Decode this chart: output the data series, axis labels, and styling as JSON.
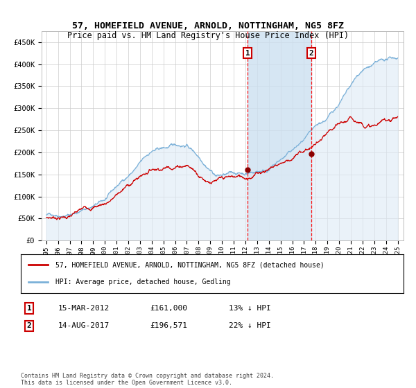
{
  "title": "57, HOMEFIELD AVENUE, ARNOLD, NOTTINGHAM, NG5 8FZ",
  "subtitle": "Price paid vs. HM Land Registry's House Price Index (HPI)",
  "background_color": "#ffffff",
  "plot_bg_color": "#ffffff",
  "grid_color": "#cccccc",
  "ytick_labels": [
    "£0",
    "£50K",
    "£100K",
    "£150K",
    "£200K",
    "£250K",
    "£300K",
    "£350K",
    "£400K",
    "£450K"
  ],
  "yticks": [
    0,
    50000,
    100000,
    150000,
    200000,
    250000,
    300000,
    350000,
    400000,
    450000
  ],
  "xmin": 1994.6,
  "xmax": 2025.5,
  "ymin": 0,
  "ymax": 475000,
  "hpi_color": "#7ab0d8",
  "hpi_fill_color": "#ddeaf5",
  "span_fill_color": "#cce0f0",
  "price_color": "#cc0000",
  "sale1_x": 2012.2,
  "sale1_y": 161000,
  "sale1_label": "1",
  "sale1_date": "15-MAR-2012",
  "sale1_price": "£161,000",
  "sale1_hpi": "13% ↓ HPI",
  "sale2_x": 2017.62,
  "sale2_y": 196571,
  "sale2_label": "2",
  "sale2_date": "14-AUG-2017",
  "sale2_price": "£196,571",
  "sale2_hpi": "22% ↓ HPI",
  "legend_line1": "57, HOMEFIELD AVENUE, ARNOLD, NOTTINGHAM, NG5 8FZ (detached house)",
  "legend_line2": "HPI: Average price, detached house, Gedling",
  "footer": "Contains HM Land Registry data © Crown copyright and database right 2024.\nThis data is licensed under the Open Government Licence v3.0.",
  "xticks": [
    1995,
    1996,
    1997,
    1998,
    1999,
    2000,
    2001,
    2002,
    2003,
    2004,
    2005,
    2006,
    2007,
    2008,
    2009,
    2010,
    2011,
    2012,
    2013,
    2014,
    2015,
    2016,
    2017,
    2018,
    2019,
    2020,
    2021,
    2022,
    2023,
    2024,
    2025
  ]
}
